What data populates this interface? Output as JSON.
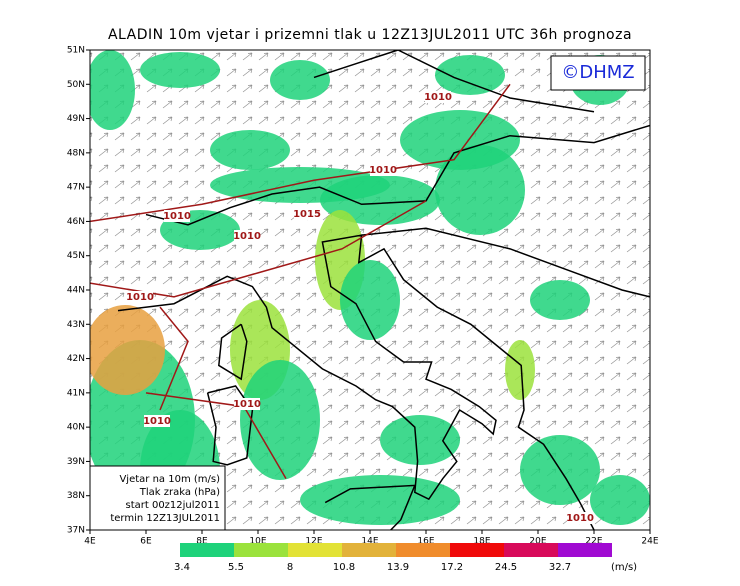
{
  "title": "ALADIN 10m vjetar i prizemni tlak u 12Z13JUL2011 UTC 36h prognoza",
  "logo": "©DHMZ",
  "lat_labels": [
    "51N",
    "50N",
    "49N",
    "48N",
    "47N",
    "46N",
    "45N",
    "44N",
    "43N",
    "42N",
    "41N",
    "40N",
    "39N",
    "38N",
    "37N"
  ],
  "lon_labels": [
    "4E",
    "6E",
    "8E",
    "10E",
    "12E",
    "14E",
    "16E",
    "18E",
    "20E",
    "22E",
    "24E"
  ],
  "isobar_labels": [
    "1010",
    "1010",
    "1010",
    "1015",
    "1010",
    "1010",
    "1010",
    "1010",
    "1010"
  ],
  "info_box": [
    "Vjetar na 10m (m/s)",
    "Tlak zraka (hPa)",
    "start 00z12jul2011",
    "termin 12Z13JUL2011"
  ],
  "colorbar": {
    "labels": [
      "3.4",
      "5.5",
      "8",
      "10.8",
      "13.9",
      "17.2",
      "24.5",
      "32.7"
    ],
    "colors": [
      "#1ed27a",
      "#9be23c",
      "#e2e236",
      "#e2b23a",
      "#f08c2c",
      "#f00a0a",
      "#d80a5a",
      "#a00ad2"
    ],
    "unit": "(m/s)"
  }
}
